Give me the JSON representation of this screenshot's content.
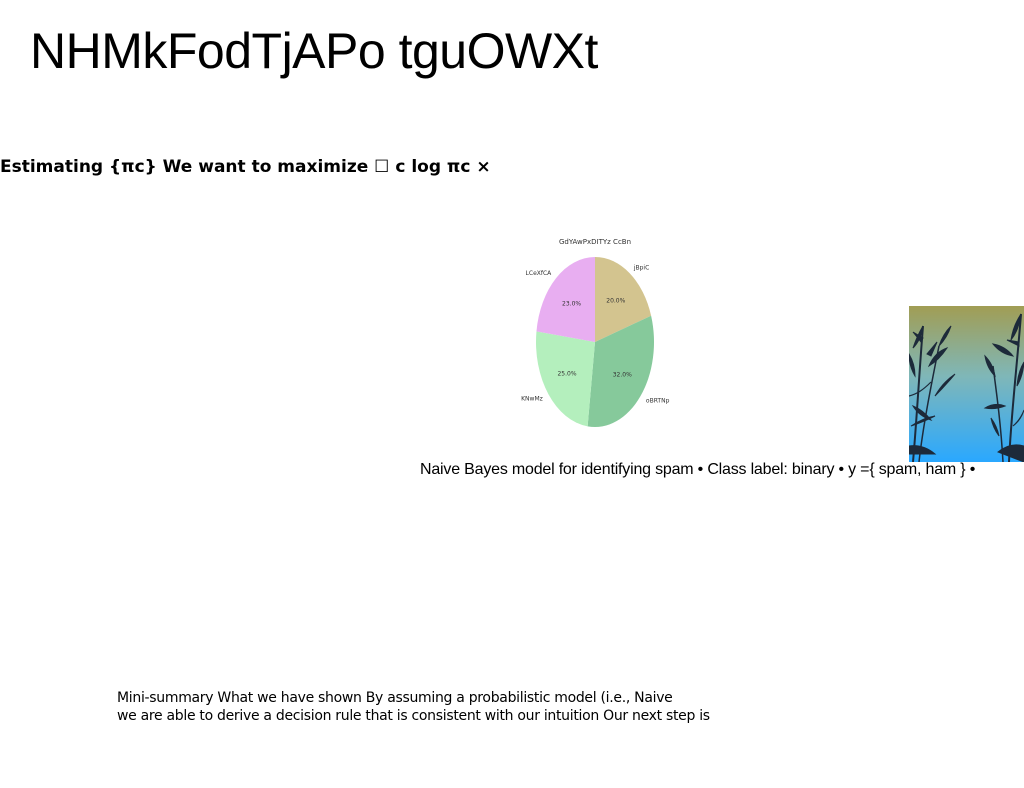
{
  "slide": {
    "title": "NHMkFodTjAPo tguOWXt",
    "equation_text": "Estimating {πc} We want to maximize ☐ c log πc ×",
    "caption": "Naive Bayes model for identifying spam • Class label: binary • y ={ spam, ham } •",
    "summary_lines": [
      "Mini-summary What we have shown By assuming a probabilistic model (i.e., Naive",
      "we are able to derive a decision rule that is consistent with our intuition Our next step is"
    ]
  },
  "chart_data": {
    "type": "pie",
    "title": "GdYAwPxDITYz CcBn",
    "slices": [
      {
        "label": "jBpiC",
        "value": 20.0,
        "display": "20.0%",
        "color": "#d3c48f"
      },
      {
        "label": "oBRTNp",
        "value": 32.0,
        "display": "32.0%",
        "color": "#86c99b"
      },
      {
        "label": "KNwMz",
        "value": 25.0,
        "display": "25.0%",
        "color": "#b4efbd"
      },
      {
        "label": "LCeXfCA",
        "value": 23.0,
        "display": "23.0%",
        "color": "#e8aef1"
      }
    ],
    "start_angle_deg": 90,
    "direction": "clockwise"
  },
  "image": {
    "sky_top": "#a19d54",
    "sky_bottom": "#2aa8ff",
    "silhouette": "#1d2a3a"
  }
}
